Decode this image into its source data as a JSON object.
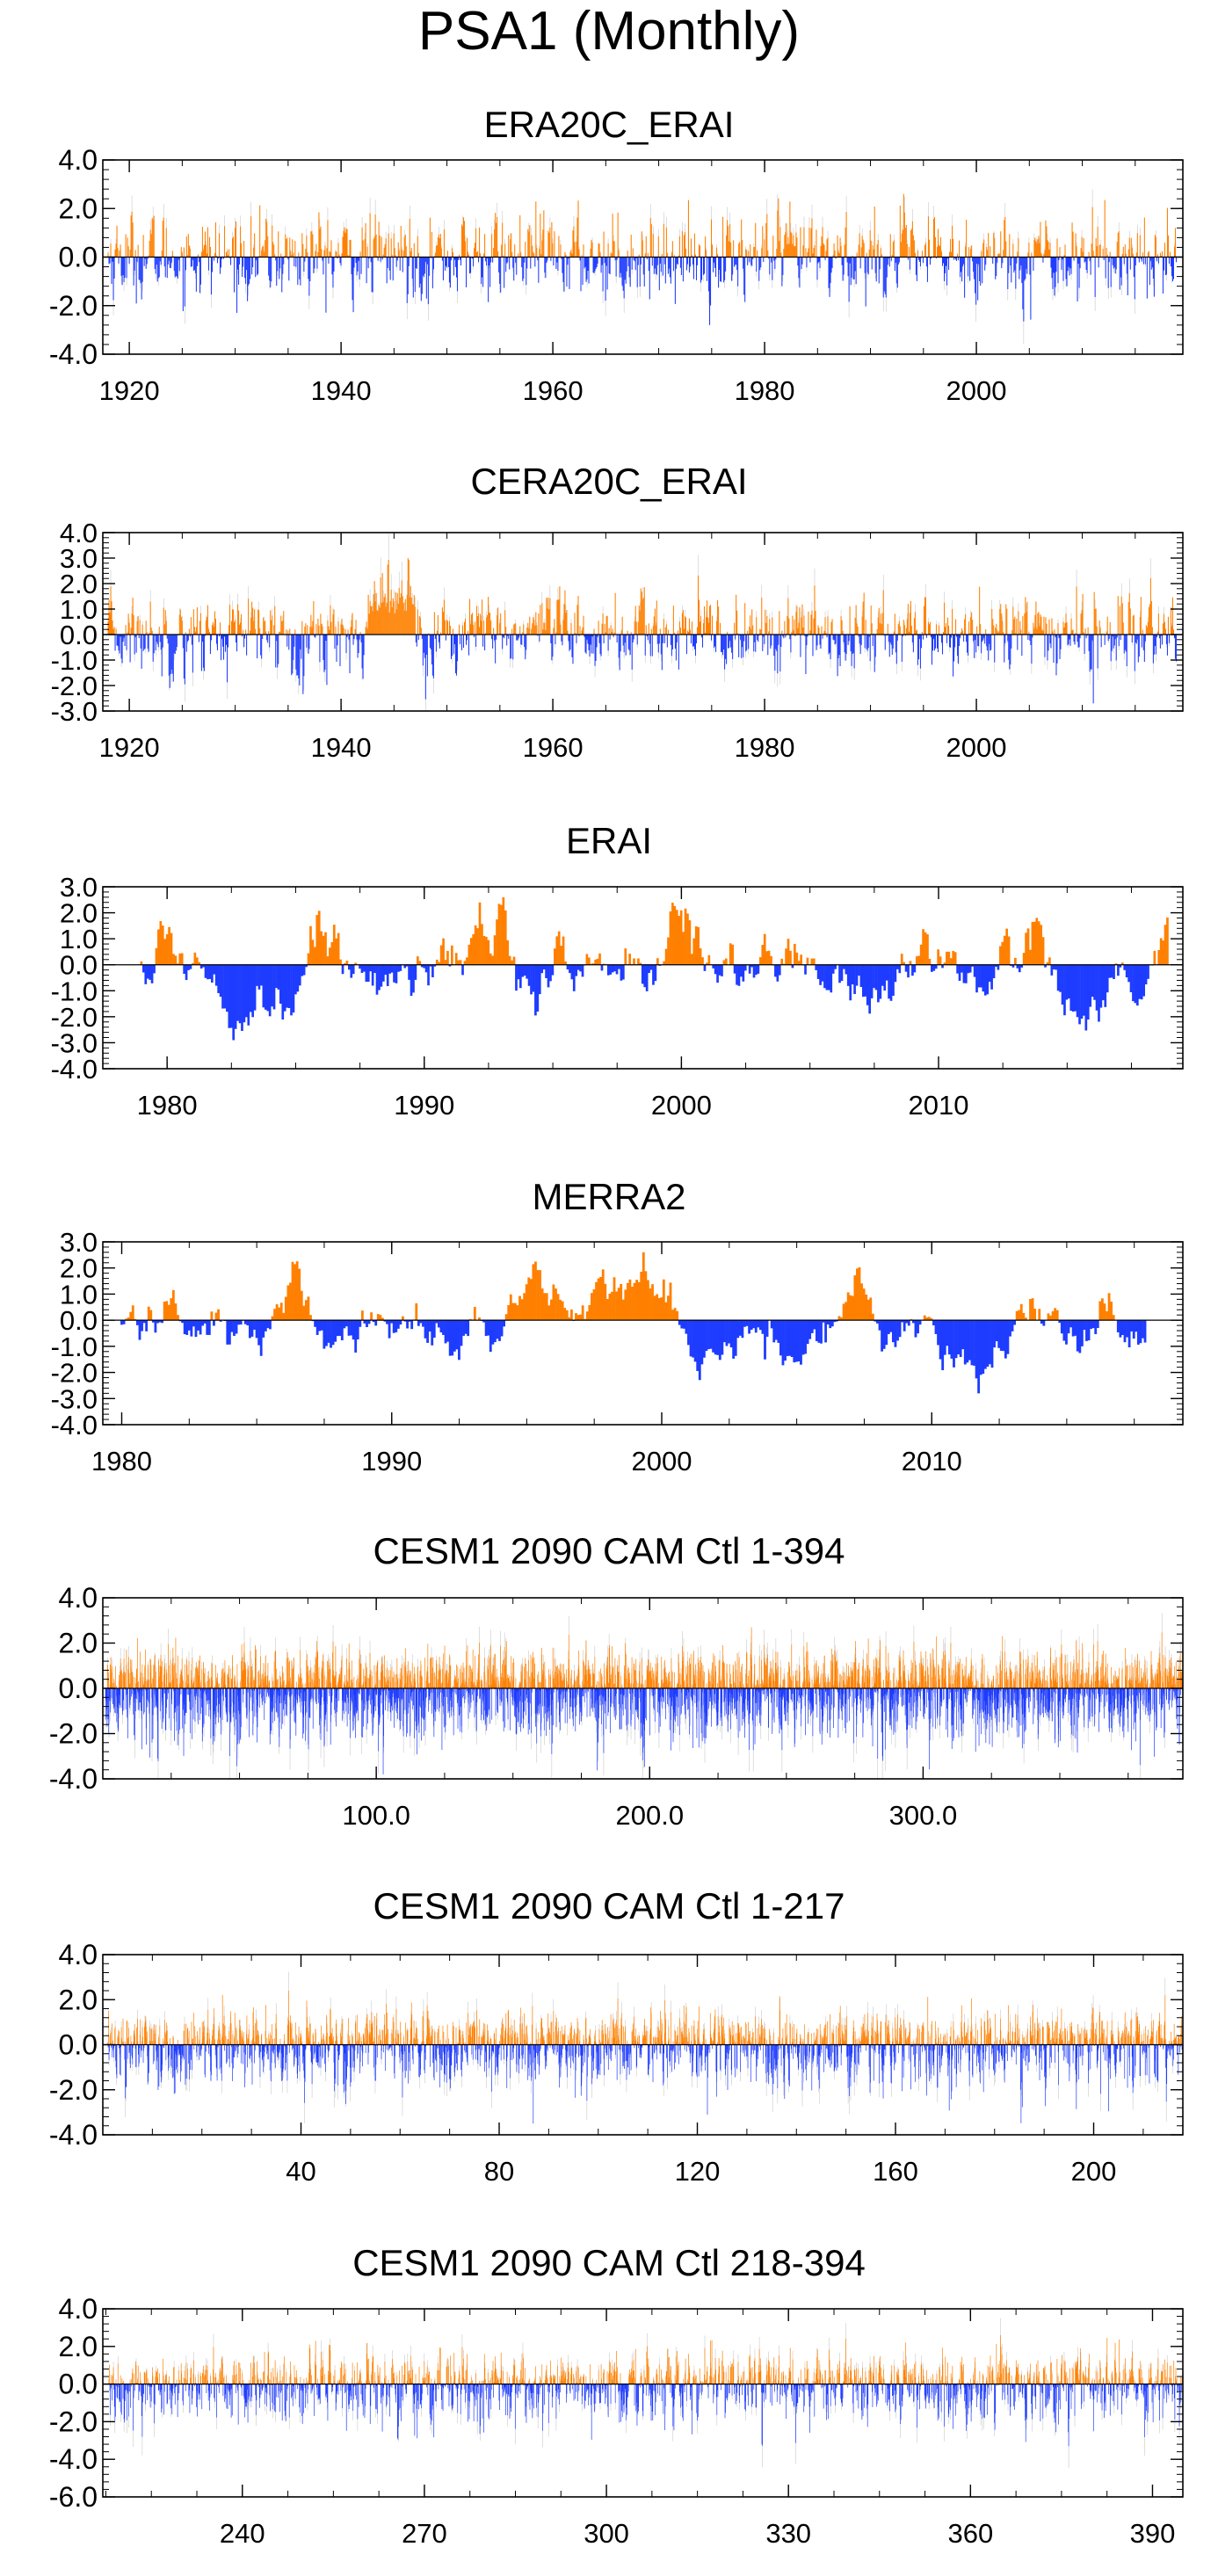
{
  "title": "PSA1 (Monthly)",
  "colors": {
    "positive": "#ff8000",
    "negative": "#1e3cff",
    "axis": "#000000",
    "faint": "#c8c8c8"
  },
  "chart_data": [
    {
      "type": "bar",
      "title": "ERA20C_ERAI",
      "x_range": [
        1917.5,
        2019.5
      ],
      "y_range": [
        -4.0,
        4.0
      ],
      "y_ticks": [
        "4.0",
        "2.0",
        "0.0",
        "-2.0",
        "-4.0"
      ],
      "y_tick_values": [
        4,
        2,
        0,
        -2,
        -4
      ],
      "x_ticks": [
        "1920",
        "1940",
        "1960",
        "1980",
        "2000"
      ],
      "x_tick_values": [
        1920,
        1940,
        1960,
        1980,
        2000
      ],
      "bar_start": 1918.0,
      "bar_step": 0.0833,
      "n_bars": 1212,
      "extremes": {
        "max": 2.6,
        "min": -2.8
      },
      "style": "spiky"
    },
    {
      "type": "bar",
      "title": "CERA20C_ERAI",
      "x_range": [
        1917.5,
        2019.5
      ],
      "y_range": [
        -3.0,
        4.0
      ],
      "y_ticks": [
        "4.0",
        "3.0",
        "2.0",
        "1.0",
        "0.0",
        "-1.0",
        "-2.0",
        "-3.0"
      ],
      "y_tick_values": [
        4,
        3,
        2,
        1,
        0,
        -1,
        -2,
        -3
      ],
      "x_ticks": [
        "1920",
        "1940",
        "1960",
        "1980",
        "2000"
      ],
      "x_tick_values": [
        1920,
        1940,
        1960,
        1980,
        2000
      ],
      "bar_start": 1918.0,
      "bar_step": 0.0833,
      "n_bars": 1212,
      "extremes": {
        "max": 3.0,
        "min": -2.7
      },
      "style": "spiky"
    },
    {
      "type": "bar",
      "title": "ERAI",
      "x_range": [
        1977.5,
        2019.5
      ],
      "y_range": [
        -4.0,
        3.0
      ],
      "y_ticks": [
        "3.0",
        "2.0",
        "1.0",
        "0.0",
        "-1.0",
        "-2.0",
        "-3.0",
        "-4.0"
      ],
      "y_tick_values": [
        3,
        2,
        1,
        0,
        -1,
        -2,
        -3,
        -4
      ],
      "x_ticks": [
        "1980",
        "1990",
        "2000",
        "2010"
      ],
      "x_tick_values": [
        1980,
        1990,
        2000,
        2010
      ],
      "bar_start": 1979.0,
      "bar_step": 0.0833,
      "n_bars": 480,
      "extremes": {
        "max": 2.6,
        "min": -2.9
      },
      "style": "smooth"
    },
    {
      "type": "bar",
      "title": "MERRA2",
      "x_range": [
        1979.3,
        2019.3
      ],
      "y_range": [
        -4.0,
        3.0
      ],
      "y_ticks": [
        "3.0",
        "2.0",
        "1.0",
        "0.0",
        "-1.0",
        "-2.0",
        "-3.0",
        "-4.0"
      ],
      "y_tick_values": [
        3,
        2,
        1,
        0,
        -1,
        -2,
        -3,
        -4
      ],
      "x_ticks": [
        "1980",
        "1990",
        "2000",
        "2010"
      ],
      "x_tick_values": [
        1980,
        1990,
        2000,
        2010
      ],
      "bar_start": 1980.0,
      "bar_step": 0.0833,
      "n_bars": 456,
      "extremes": {
        "max": 2.6,
        "min": -2.8
      },
      "style": "smooth"
    },
    {
      "type": "bar",
      "title": "CESM1 2090 CAM Ctl 1-394",
      "x_range": [
        0,
        395
      ],
      "y_range": [
        -4.0,
        4.0
      ],
      "y_ticks": [
        "4.0",
        "2.0",
        "0.0",
        "-2.0",
        "-4.0"
      ],
      "y_tick_values": [
        4,
        2,
        0,
        -2,
        -4
      ],
      "x_ticks": [
        "100.0",
        "200.0",
        "300.0"
      ],
      "x_tick_values": [
        100,
        200,
        300
      ],
      "bar_start": 1.0,
      "bar_step": 0.0833,
      "n_bars": 4728,
      "extremes": {
        "max": 2.7,
        "min": -3.8
      },
      "style": "spiky"
    },
    {
      "type": "bar",
      "title": "CESM1 2090 CAM Ctl 1-217",
      "x_range": [
        0,
        218
      ],
      "y_range": [
        -4.0,
        4.0
      ],
      "y_ticks": [
        "4.0",
        "2.0",
        "0.0",
        "-2.0",
        "-4.0"
      ],
      "y_tick_values": [
        4,
        2,
        0,
        -2,
        -4
      ],
      "x_ticks": [
        "40",
        "80",
        "120",
        "160",
        "200"
      ],
      "x_tick_values": [
        40,
        80,
        120,
        160,
        200
      ],
      "bar_start": 1.0,
      "bar_step": 0.0833,
      "n_bars": 2604,
      "extremes": {
        "max": 2.4,
        "min": -3.5
      },
      "style": "spiky"
    },
    {
      "type": "bar",
      "title": "CESM1 2090 CAM Ctl 218-394",
      "x_range": [
        217,
        395
      ],
      "y_range": [
        -6.0,
        4.0
      ],
      "y_ticks": [
        "4.0",
        "2.0",
        "0.0",
        "-2.0",
        "-4.0",
        "-6.0"
      ],
      "y_tick_values": [
        4,
        2,
        0,
        -2,
        -4,
        -6
      ],
      "x_ticks": [
        "240",
        "270",
        "300",
        "330",
        "360",
        "390"
      ],
      "x_tick_values": [
        240,
        270,
        300,
        330,
        360,
        390
      ],
      "bar_start": 218.0,
      "bar_step": 0.0833,
      "n_bars": 2124,
      "extremes": {
        "max": 2.6,
        "min": -3.3
      },
      "style": "spiky"
    }
  ]
}
